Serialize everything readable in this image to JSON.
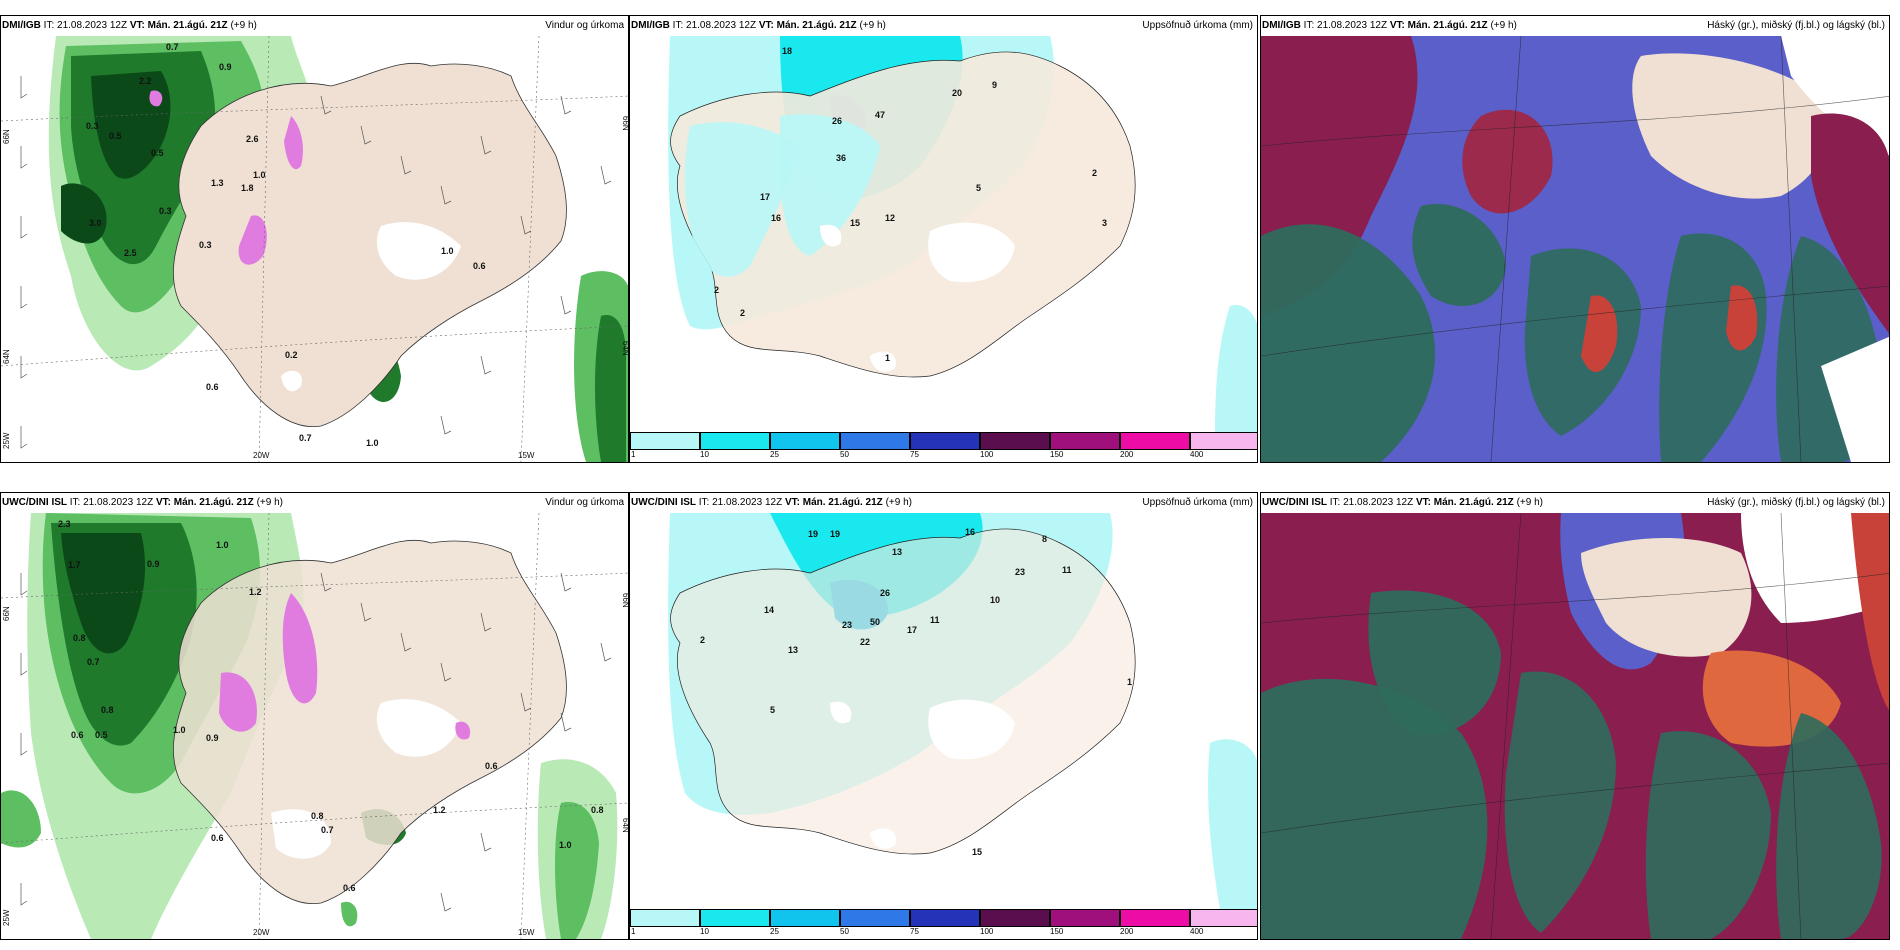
{
  "panels": [
    {
      "model": "DMI/IGB",
      "it": "IT: 21.08.2023 12Z",
      "vt": "VT: Mán. 21.ágú. 21Z",
      "lead": "(+9 h)",
      "title": "Vindur og úrkoma"
    },
    {
      "model": "DMI/IGB",
      "it": "IT: 21.08.2023 12Z",
      "vt": "VT: Mán. 21.ágú. 21Z",
      "lead": "(+9 h)",
      "title": "Uppsöfnuð úrkoma (mm)"
    },
    {
      "model": "DMI/IGB",
      "it": "IT: 21.08.2023 12Z",
      "vt": "VT: Mán. 21.ágú. 21Z",
      "lead": "(+9 h)",
      "title": "Háský (gr.), miðský (fj.bl.) og lágský (bl.)"
    },
    {
      "model": "UWC/DINI ISL",
      "it": "IT: 21.08.2023 12Z",
      "vt": "VT: Mán. 21.ágú. 21Z",
      "lead": "(+9 h)",
      "title": "Vindur og úrkoma"
    },
    {
      "model": "UWC/DINI ISL",
      "it": "IT: 21.08.2023 12Z",
      "vt": "VT: Mán. 21.ágú. 21Z",
      "lead": "(+9 h)",
      "title": "Uppsöfnuð úrkoma (mm)"
    },
    {
      "model": "UWC/DINI ISL",
      "it": "IT: 21.08.2023 12Z",
      "vt": "VT: Mán. 21.ágú. 21Z",
      "lead": "(+9 h)",
      "title": "Háský (gr.), miðský (fj.bl.) og lágský (bl.)"
    }
  ],
  "graticule": {
    "lat66": "66N",
    "lat64": "64N",
    "lon25": "25W",
    "lon20": "20W",
    "lon15": "15W"
  },
  "colorbar": {
    "labels": [
      "1",
      "10",
      "25",
      "50",
      "75",
      "100",
      "150",
      "200",
      "400"
    ],
    "colors": [
      "#b8f7f7",
      "#19e9ef",
      "#11c4ee",
      "#2f78e8",
      "#2433b8",
      "#5a0e4e",
      "#a0107c",
      "#ee0ca6",
      "#f8b6ee"
    ]
  },
  "wind_precip_labels": {
    "top": [
      "0.7",
      "0.9",
      "2.2",
      "0.3",
      "0.5",
      "2.6",
      "1.0",
      "3.0",
      "2.5",
      "0.3",
      "1.3",
      "1.8",
      "0.3",
      "0.5",
      "1.0",
      "0.6",
      "0.2",
      "0.6",
      "0.7",
      "1.0"
    ],
    "bottom": [
      "2.3",
      "1.7",
      "1.0",
      "0.9",
      "1.2",
      "0.8",
      "0.7",
      "0.5",
      "0.6",
      "0.8",
      "1.0",
      "0.6",
      "0.9",
      "0.7",
      "0.8",
      "1.2",
      "0.6",
      "1.0",
      "0.8",
      "0.6"
    ]
  },
  "accum_labels": {
    "top": [
      "18",
      "26",
      "47",
      "20",
      "9",
      "36",
      "17",
      "16",
      "15",
      "12",
      "5",
      "2",
      "2",
      "1",
      "2",
      "3"
    ],
    "bottom": [
      "19",
      "19",
      "16",
      "13",
      "8",
      "11",
      "26",
      "23",
      "22",
      "50",
      "17",
      "11",
      "14",
      "13",
      "10",
      "1",
      "23",
      "15",
      "2",
      "5"
    ]
  }
}
